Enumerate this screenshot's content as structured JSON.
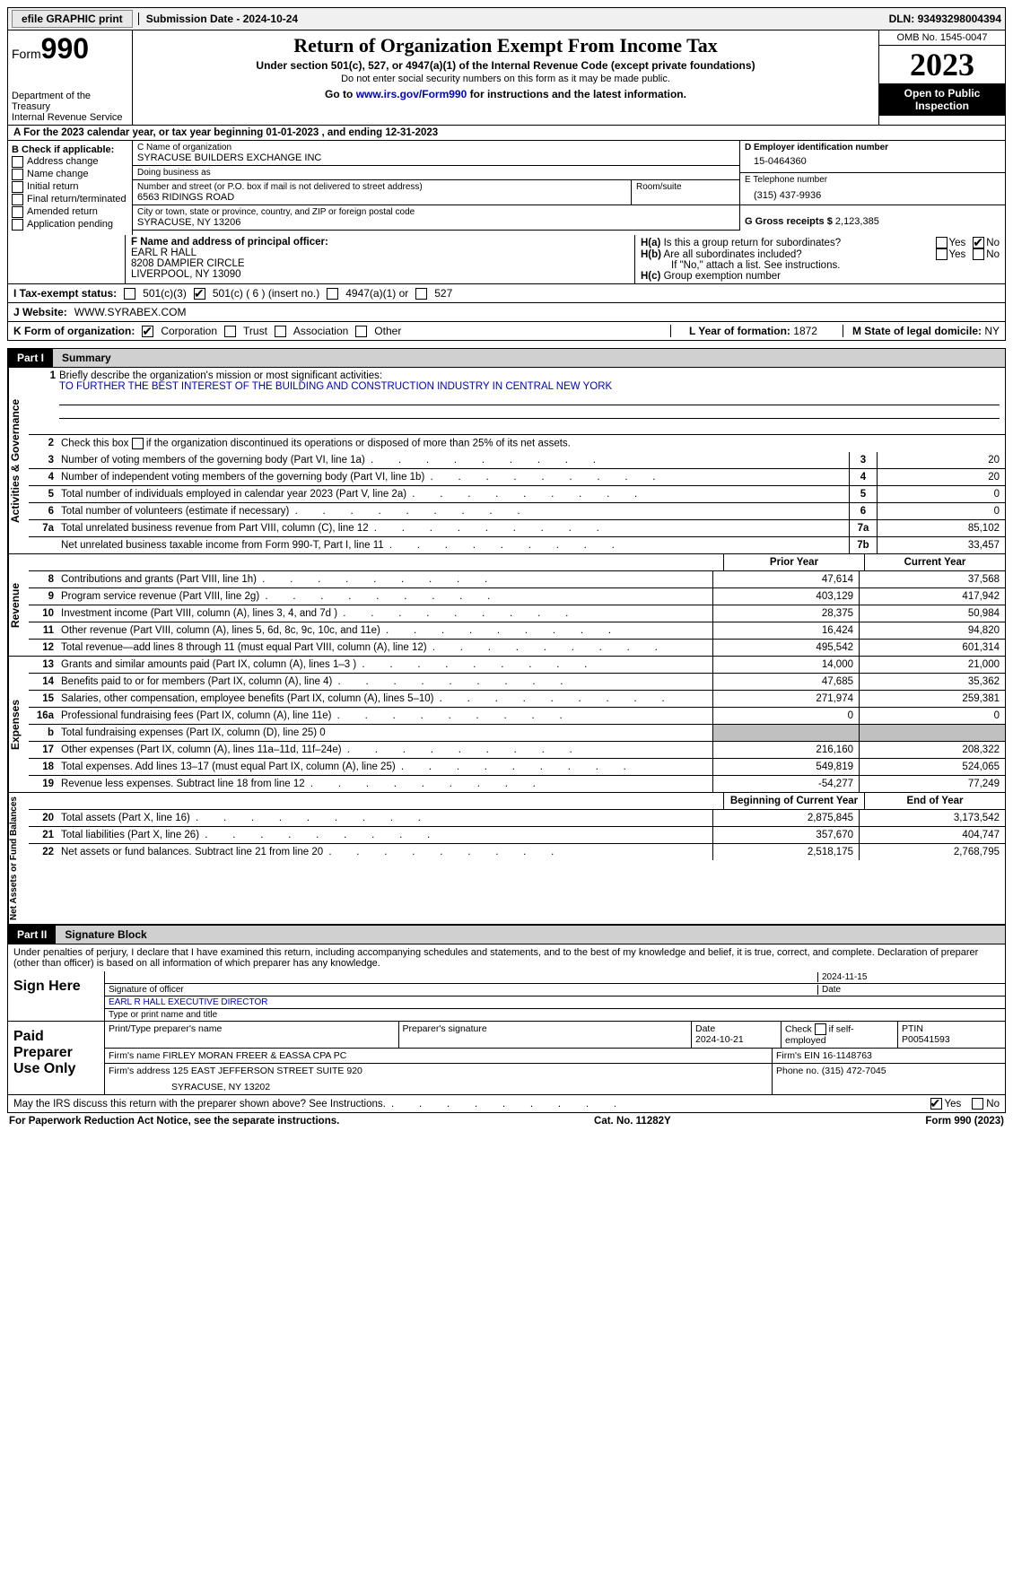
{
  "topbar": {
    "efile": "efile GRAPHIC print",
    "submission_label": "Submission Date - ",
    "submission_date": "2024-10-24",
    "dln_label": "DLN: ",
    "dln": "93493298004394"
  },
  "header": {
    "form_word": "Form",
    "form_number": "990",
    "dept": "Department of the Treasury",
    "irs": "Internal Revenue Service",
    "title": "Return of Organization Exempt From Income Tax",
    "sub1": "Under section 501(c), 527, or 4947(a)(1) of the Internal Revenue Code (except private foundations)",
    "sub2": "Do not enter social security numbers on this form as it may be made public.",
    "link_prefix": "Go to ",
    "link_url": "www.irs.gov/Form990",
    "link_suffix": " for instructions and the latest information.",
    "omb": "OMB No. 1545-0047",
    "year": "2023",
    "open_pub": "Open to Public Inspection"
  },
  "row_a": "A For the 2023 calendar year, or tax year beginning 01-01-2023    , and ending 12-31-2023",
  "col_b": {
    "header": "B Check if applicable:",
    "items": [
      "Address change",
      "Name change",
      "Initial return",
      "Final return/terminated",
      "Amended return",
      "Application pending"
    ]
  },
  "col_c": {
    "name_lbl": "C Name of organization",
    "name": "SYRACUSE BUILDERS EXCHANGE INC",
    "dba_lbl": "Doing business as",
    "dba": "",
    "street_lbl": "Number and street (or P.O. box if mail is not delivered to street address)",
    "street": "6563 RIDINGS ROAD",
    "room_lbl": "Room/suite",
    "room": "",
    "city_lbl": "City or town, state or province, country, and ZIP or foreign postal code",
    "city": "SYRACUSE, NY  13206"
  },
  "col_d": {
    "ein_lbl": "D Employer identification number",
    "ein": "15-0464360",
    "phone_lbl": "E Telephone number",
    "phone": "(315) 437-9936",
    "gross_lbl": "G Gross receipts $ ",
    "gross": "2,123,385"
  },
  "officer": {
    "lbl": "F  Name and address of principal officer:",
    "name": "EARL R HALL",
    "addr1": "8208 DAMPIER CIRCLE",
    "addr2": "LIVERPOOL, NY  13090"
  },
  "h": {
    "a_lbl": "H(a)  Is this a group return for subordinates?",
    "b_lbl": "H(b)  Are all subordinates included?",
    "b_note": "If \"No,\" attach a list. See instructions.",
    "c_lbl": "H(c)  Group exemption number  ",
    "yes": "Yes",
    "no": "No"
  },
  "status": {
    "lbl": "I   Tax-exempt status:",
    "o1": "501(c)(3)",
    "o2": "501(c) ( 6 ) (insert no.)",
    "o3": "4947(a)(1) or",
    "o4": "527"
  },
  "website": {
    "lbl": "J   Website: ",
    "val": "WWW.SYRABEX.COM"
  },
  "k": {
    "lbl": "K Form of organization:",
    "opts": [
      "Corporation",
      "Trust",
      "Association",
      "Other"
    ],
    "l_lbl": "L Year of formation: ",
    "l_val": "1872",
    "m_lbl": "M State of legal domicile: ",
    "m_val": "NY"
  },
  "part1": {
    "label": "Part I",
    "title": "Summary"
  },
  "summary": {
    "q1_lbl": "Briefly describe the organization's mission or most significant activities:",
    "q1_val": "TO FURTHER THE BEST INTEREST OF THE BUILDING AND CONSTRUCTION INDUSTRY IN CENTRAL NEW YORK",
    "q2": "Check this box        if the organization discontinued its operations or disposed of more than 25% of its net assets.",
    "rows_gov": [
      {
        "n": "3",
        "d": "Number of voting members of the governing body (Part VI, line 1a)",
        "b": "3",
        "v": "20"
      },
      {
        "n": "4",
        "d": "Number of independent voting members of the governing body (Part VI, line 1b)",
        "b": "4",
        "v": "20"
      },
      {
        "n": "5",
        "d": "Total number of individuals employed in calendar year 2023 (Part V, line 2a)",
        "b": "5",
        "v": "0"
      },
      {
        "n": "6",
        "d": "Total number of volunteers (estimate if necessary)",
        "b": "6",
        "v": "0"
      },
      {
        "n": "7a",
        "d": "Total unrelated business revenue from Part VIII, column (C), line 12",
        "b": "7a",
        "v": "85,102"
      },
      {
        "n": "",
        "d": "Net unrelated business taxable income from Form 990-T, Part I, line 11",
        "b": "7b",
        "v": "33,457"
      }
    ],
    "col_hdr1": "Prior Year",
    "col_hdr2": "Current Year",
    "revenue": [
      {
        "n": "8",
        "d": "Contributions and grants (Part VIII, line 1h)",
        "c1": "47,614",
        "c2": "37,568"
      },
      {
        "n": "9",
        "d": "Program service revenue (Part VIII, line 2g)",
        "c1": "403,129",
        "c2": "417,942"
      },
      {
        "n": "10",
        "d": "Investment income (Part VIII, column (A), lines 3, 4, and 7d )",
        "c1": "28,375",
        "c2": "50,984"
      },
      {
        "n": "11",
        "d": "Other revenue (Part VIII, column (A), lines 5, 6d, 8c, 9c, 10c, and 11e)",
        "c1": "16,424",
        "c2": "94,820"
      },
      {
        "n": "12",
        "d": "Total revenue—add lines 8 through 11 (must equal Part VIII, column (A), line 12)",
        "c1": "495,542",
        "c2": "601,314"
      }
    ],
    "expenses": [
      {
        "n": "13",
        "d": "Grants and similar amounts paid (Part IX, column (A), lines 1–3 )",
        "c1": "14,000",
        "c2": "21,000"
      },
      {
        "n": "14",
        "d": "Benefits paid to or for members (Part IX, column (A), line 4)",
        "c1": "47,685",
        "c2": "35,362"
      },
      {
        "n": "15",
        "d": "Salaries, other compensation, employee benefits (Part IX, column (A), lines 5–10)",
        "c1": "271,974",
        "c2": "259,381"
      },
      {
        "n": "16a",
        "d": "Professional fundraising fees (Part IX, column (A), line 11e)",
        "c1": "0",
        "c2": "0"
      },
      {
        "n": "b",
        "d": "Total fundraising expenses (Part IX, column (D), line 25) 0",
        "c1": "",
        "c2": "",
        "shaded": true
      },
      {
        "n": "17",
        "d": "Other expenses (Part IX, column (A), lines 11a–11d, 11f–24e)",
        "c1": "216,160",
        "c2": "208,322"
      },
      {
        "n": "18",
        "d": "Total expenses. Add lines 13–17 (must equal Part IX, column (A), line 25)",
        "c1": "549,819",
        "c2": "524,065"
      },
      {
        "n": "19",
        "d": "Revenue less expenses. Subtract line 18 from line 12",
        "c1": "-54,277",
        "c2": "77,249"
      }
    ],
    "net_hdr1": "Beginning of Current Year",
    "net_hdr2": "End of Year",
    "net": [
      {
        "n": "20",
        "d": "Total assets (Part X, line 16)",
        "c1": "2,875,845",
        "c2": "3,173,542"
      },
      {
        "n": "21",
        "d": "Total liabilities (Part X, line 26)",
        "c1": "357,670",
        "c2": "404,747"
      },
      {
        "n": "22",
        "d": "Net assets or fund balances. Subtract line 21 from line 20",
        "c1": "2,518,175",
        "c2": "2,768,795"
      }
    ]
  },
  "vlabels": {
    "gov": "Activities & Governance",
    "rev": "Revenue",
    "exp": "Expenses",
    "net": "Net Assets or Fund Balances"
  },
  "part2": {
    "label": "Part II",
    "title": "Signature Block"
  },
  "penalties": "Under penalties of perjury, I declare that I have examined this return, including accompanying schedules and statements, and to the best of my knowledge and belief, it is true, correct, and complete. Declaration of preparer (other than officer) is based on all information of which preparer has any knowledge.",
  "sign": {
    "here": "Sign Here",
    "sig_lbl": "Signature of officer",
    "date_lbl": "Date",
    "date_val": "2024-11-15",
    "officer_name": "EARL R HALL  EXECUTIVE DIRECTOR",
    "type_lbl": "Type or print name and title",
    "paid": "Paid Preparer Use Only",
    "prep_name_lbl": "Print/Type preparer's name",
    "prep_sig_lbl": "Preparer's signature",
    "prep_date_lbl": "Date",
    "prep_date": "2024-10-21",
    "prep_self_lbl": "Check       if self-employed",
    "ptin_lbl": "PTIN",
    "ptin": "P00541593",
    "firm_name_lbl": "Firm's name    ",
    "firm_name": "FIRLEY MORAN FREER & EASSA CPA PC",
    "firm_ein_lbl": "Firm's EIN  ",
    "firm_ein": "16-1148763",
    "firm_addr_lbl": "Firm's address ",
    "firm_addr1": "125 EAST JEFFERSON STREET SUITE 920",
    "firm_addr2": "SYRACUSE, NY  13202",
    "firm_phone_lbl": "Phone no. ",
    "firm_phone": "(315) 472-7045"
  },
  "discuss": {
    "q": "May the IRS discuss this return with the preparer shown above? See Instructions.",
    "yes": "Yes",
    "no": "No"
  },
  "footer": {
    "paperwork": "For Paperwork Reduction Act Notice, see the separate instructions.",
    "cat": "Cat. No. 11282Y",
    "form": "Form 990 (2023)"
  }
}
